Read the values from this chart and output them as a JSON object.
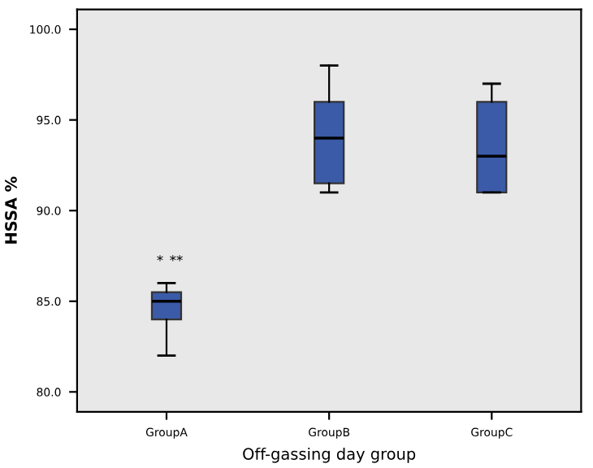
{
  "chart_data": {
    "type": "box",
    "xlabel": "Off-gassing day group",
    "ylabel": "HSSA %",
    "categories": [
      "GroupA",
      "GroupB",
      "GroupC"
    ],
    "boxes": [
      {
        "low": 82,
        "q1": 84,
        "median": 85,
        "q3": 85.5,
        "high": 86
      },
      {
        "low": 91,
        "q1": 91.5,
        "median": 94,
        "q3": 96,
        "high": 98
      },
      {
        "low": 91,
        "q1": 91,
        "median": 93,
        "q3": 96,
        "high": 97
      }
    ],
    "color": "#3b5aa8",
    "ylim": [
      78.9,
      101.1
    ],
    "yticks": [
      {
        "value": 80,
        "label": "80.0"
      },
      {
        "value": 85,
        "label": "85.0"
      },
      {
        "value": 90,
        "label": "90.0"
      },
      {
        "value": 95,
        "label": "95.0"
      },
      {
        "value": 100,
        "label": "100.0"
      }
    ],
    "annotations": [
      "*",
      "**"
    ],
    "grid": false
  }
}
